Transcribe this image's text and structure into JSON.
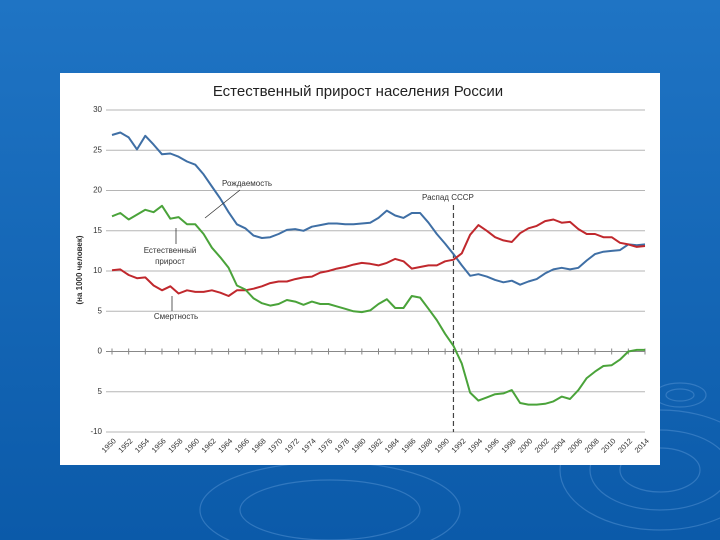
{
  "chart_data": {
    "type": "line",
    "title": "Естественный прирост населения России",
    "ylabel": "(на 1000 человек)",
    "x": [
      1950,
      1951,
      1952,
      1953,
      1954,
      1955,
      1956,
      1957,
      1958,
      1959,
      1960,
      1961,
      1962,
      1963,
      1964,
      1965,
      1966,
      1967,
      1968,
      1969,
      1970,
      1971,
      1972,
      1973,
      1974,
      1975,
      1976,
      1977,
      1978,
      1979,
      1980,
      1981,
      1982,
      1983,
      1984,
      1985,
      1986,
      1987,
      1988,
      1989,
      1990,
      1991,
      1992,
      1993,
      1994,
      1995,
      1996,
      1997,
      1998,
      1999,
      2000,
      2001,
      2002,
      2003,
      2004,
      2005,
      2006,
      2007,
      2008,
      2009,
      2010,
      2011,
      2012,
      2013,
      2014
    ],
    "series": [
      {
        "name": "Рождаемость",
        "color": "#3f6fa5",
        "values": [
          26.9,
          27.2,
          26.6,
          25.1,
          26.8,
          25.7,
          24.5,
          24.6,
          24.2,
          23.6,
          23.2,
          22.0,
          20.5,
          19.0,
          17.3,
          15.8,
          15.3,
          14.4,
          14.1,
          14.2,
          14.6,
          15.1,
          15.2,
          15.0,
          15.5,
          15.7,
          15.9,
          15.9,
          15.8,
          15.8,
          15.9,
          16.0,
          16.6,
          17.5,
          16.9,
          16.6,
          17.2,
          17.2,
          16.0,
          14.6,
          13.4,
          12.1,
          10.7,
          9.4,
          9.6,
          9.3,
          8.9,
          8.6,
          8.8,
          8.3,
          8.7,
          9.0,
          9.7,
          10.2,
          10.4,
          10.2,
          10.4,
          11.3,
          12.1,
          12.4,
          12.5,
          12.6,
          13.3,
          13.2,
          13.3
        ]
      },
      {
        "name": "Смертность",
        "color": "#c0282d",
        "values": [
          10.1,
          10.2,
          9.5,
          9.1,
          9.2,
          8.2,
          7.6,
          8.1,
          7.2,
          7.6,
          7.4,
          7.4,
          7.6,
          7.3,
          6.9,
          7.6,
          7.6,
          7.8,
          8.1,
          8.5,
          8.7,
          8.7,
          9.0,
          9.2,
          9.3,
          9.8,
          10.0,
          10.3,
          10.5,
          10.8,
          11.0,
          10.9,
          10.7,
          11.0,
          11.5,
          11.2,
          10.3,
          10.5,
          10.7,
          10.7,
          11.2,
          11.4,
          12.2,
          14.5,
          15.7,
          15.0,
          14.2,
          13.8,
          13.6,
          14.7,
          15.3,
          15.6,
          16.2,
          16.4,
          16.0,
          16.1,
          15.2,
          14.6,
          14.6,
          14.2,
          14.2,
          13.5,
          13.3,
          13.0,
          13.1
        ]
      },
      {
        "name": "Естественный прирост",
        "color": "#4aa33a",
        "values": [
          16.8,
          17.2,
          16.4,
          17.0,
          17.6,
          17.3,
          18.1,
          16.5,
          16.7,
          15.8,
          15.8,
          14.6,
          12.9,
          11.7,
          10.4,
          8.2,
          7.7,
          6.6,
          6.0,
          5.7,
          5.9,
          6.4,
          6.2,
          5.8,
          6.2,
          5.9,
          5.9,
          5.6,
          5.3,
          5.0,
          4.9,
          5.1,
          5.9,
          6.5,
          5.4,
          5.4,
          6.9,
          6.7,
          5.3,
          3.9,
          2.2,
          0.7,
          -1.5,
          -5.1,
          -6.1,
          -5.7,
          -5.3,
          -5.2,
          -4.8,
          -6.4,
          -6.6,
          -6.6,
          -6.5,
          -6.2,
          -5.6,
          -5.9,
          -4.8,
          -3.3,
          -2.5,
          -1.8,
          -1.7,
          -1.0,
          0.0,
          0.2,
          0.2
        ]
      }
    ],
    "annotations": [
      {
        "lines": [
          "Рождаемость"
        ]
      },
      {
        "lines": [
          "Естественный",
          "прирост"
        ]
      },
      {
        "lines": [
          "Смертность"
        ]
      },
      {
        "lines": [
          "Распад СССР"
        ],
        "x": 1991
      }
    ],
    "xlim": [
      1950,
      2014
    ],
    "xticks": [
      1950,
      1952,
      1954,
      1956,
      1958,
      1960,
      1962,
      1964,
      1966,
      1968,
      1970,
      1972,
      1974,
      1976,
      1978,
      1980,
      1982,
      1984,
      1986,
      1988,
      1990,
      1992,
      1994,
      1996,
      1998,
      2000,
      2002,
      2004,
      2006,
      2008,
      2010,
      2012,
      2014
    ],
    "ylim": [
      -10,
      30
    ],
    "yticks": [
      -10,
      {
        "value": -5,
        "label": "5"
      },
      0,
      5,
      10,
      15,
      20,
      25,
      30
    ],
    "grid": true
  }
}
